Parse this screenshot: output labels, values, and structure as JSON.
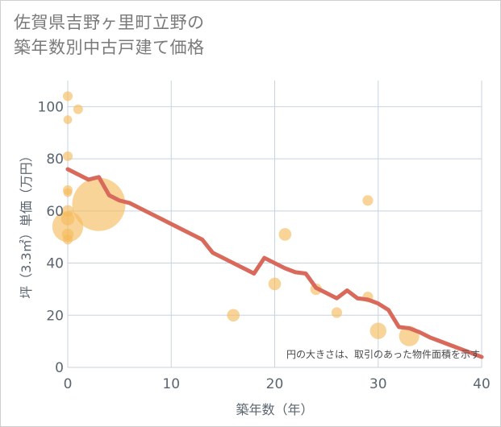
{
  "title_line1": "佐賀県吉野ヶ里町立野の",
  "title_line2": "築年数別中古戸建て価格",
  "chart_data": {
    "type": "scatter",
    "title": "佐賀県吉野ヶ里町立野の築年数別中古戸建て価格",
    "xlabel": "築年数（年）",
    "ylabel": "坪（3.3㎡）単価（万円）",
    "xlim": [
      0,
      40
    ],
    "ylim": [
      0,
      110
    ],
    "xticks": [
      0,
      10,
      20,
      30,
      40
    ],
    "yticks": [
      0,
      20,
      40,
      60,
      80,
      100
    ],
    "grid": true,
    "note": "円の大きさは、取引のあった物件面積を示す",
    "colors": {
      "bubble": "#f5b95a",
      "line": "#d9695b",
      "grid": "#c8d3df",
      "tick": "#5b6570"
    },
    "bubbles": [
      {
        "x": 0,
        "y": 104,
        "size": 1.0
      },
      {
        "x": 1,
        "y": 99,
        "size": 1.0
      },
      {
        "x": 0,
        "y": 95,
        "size": 0.9
      },
      {
        "x": 0,
        "y": 81,
        "size": 1.0
      },
      {
        "x": 0,
        "y": 68,
        "size": 1.0
      },
      {
        "x": 0,
        "y": 67,
        "size": 0.9
      },
      {
        "x": 0,
        "y": 60,
        "size": 1.2
      },
      {
        "x": 0,
        "y": 57,
        "size": 1.4
      },
      {
        "x": 0,
        "y": 54,
        "size": 3.2
      },
      {
        "x": 0,
        "y": 51,
        "size": 1.2
      },
      {
        "x": 0,
        "y": 49,
        "size": 1.0
      },
      {
        "x": 3,
        "y": 62.5,
        "size": 5.5
      },
      {
        "x": 16,
        "y": 20,
        "size": 1.3
      },
      {
        "x": 20,
        "y": 32,
        "size": 1.3
      },
      {
        "x": 21,
        "y": 51,
        "size": 1.3
      },
      {
        "x": 24,
        "y": 30,
        "size": 1.2
      },
      {
        "x": 26,
        "y": 21,
        "size": 1.1
      },
      {
        "x": 29,
        "y": 64,
        "size": 1.1
      },
      {
        "x": 29,
        "y": 27,
        "size": 1.1
      },
      {
        "x": 30,
        "y": 14,
        "size": 1.7
      },
      {
        "x": 33,
        "y": 12,
        "size": 2.1
      }
    ],
    "trend": {
      "x": [
        0,
        1,
        2,
        3,
        4,
        5,
        6,
        7,
        8,
        9,
        10,
        11,
        12,
        13,
        14,
        15,
        16,
        17,
        18,
        19,
        20,
        21,
        22,
        23,
        24,
        25,
        26,
        27,
        28,
        29,
        30,
        31,
        32,
        33,
        34,
        35,
        36,
        37,
        38,
        39,
        40
      ],
      "y": [
        76,
        74,
        72,
        73,
        66,
        64,
        63,
        61,
        59,
        57,
        55,
        53,
        51,
        49,
        44,
        42,
        40,
        38,
        36,
        42,
        40,
        38,
        36.5,
        36,
        30.5,
        28.5,
        26.5,
        29.5,
        26.5,
        26,
        24.5,
        22,
        15.5,
        15,
        13.5,
        11.5,
        10,
        8.5,
        7,
        5.5,
        4
      ]
    }
  }
}
